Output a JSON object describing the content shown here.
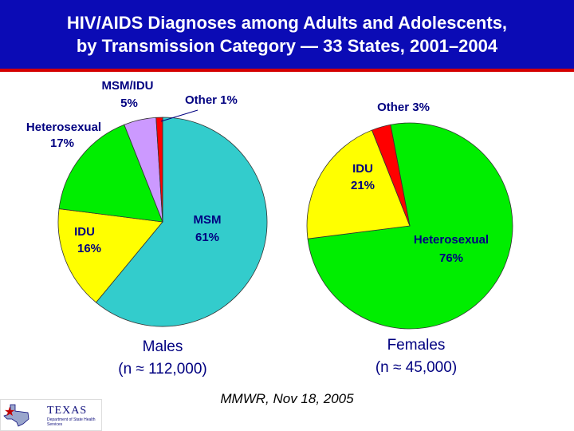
{
  "title": {
    "line1": "HIV/AIDS Diagnoses among Adults and Adolescents,",
    "line2": "by Transmission Category — 33 States, 2001–2004"
  },
  "source_text": "MMWR, Nov 18, 2005",
  "logo": {
    "name": "TEXAS",
    "subtitle": "Department of State Health Services"
  },
  "colors": {
    "title_bg": "#0b0bb5",
    "rule": "#d40000",
    "msm": "#33cccc",
    "idu": "#ffff00",
    "heterosexual": "#00ee00",
    "msm_idu": "#cc99ff",
    "other": "#ff0000",
    "pie_outline": "#333333",
    "heading_text": "#000080"
  },
  "chart_data": [
    {
      "type": "pie",
      "title": "Males",
      "subtitle": "(n ≈ 112,000)",
      "slices": [
        {
          "category": "MSM",
          "value": 61,
          "label": "MSM",
          "value_label": "61%",
          "color": "#33cccc"
        },
        {
          "category": "IDU",
          "value": 16,
          "label": "IDU",
          "value_label": "16%",
          "color": "#ffff00"
        },
        {
          "category": "Heterosexual",
          "value": 17,
          "label": "Heterosexual",
          "value_label": "17%",
          "color": "#00ee00"
        },
        {
          "category": "MSM/IDU",
          "value": 5,
          "label": "MSM/IDU",
          "value_label": "5%",
          "color": "#cc99ff"
        },
        {
          "category": "Other",
          "value": 1,
          "label": "Other 1%",
          "value_label": "",
          "color": "#ff0000"
        }
      ]
    },
    {
      "type": "pie",
      "title": "Females",
      "subtitle": "(n ≈ 45,000)",
      "slices": [
        {
          "category": "Heterosexual",
          "value": 76,
          "label": "Heterosexual",
          "value_label": "76%",
          "color": "#00ee00"
        },
        {
          "category": "IDU",
          "value": 21,
          "label": "IDU",
          "value_label": "21%",
          "color": "#ffff00"
        },
        {
          "category": "Other",
          "value": 3,
          "label": "Other 3%",
          "value_label": "",
          "color": "#ff0000"
        }
      ]
    }
  ]
}
